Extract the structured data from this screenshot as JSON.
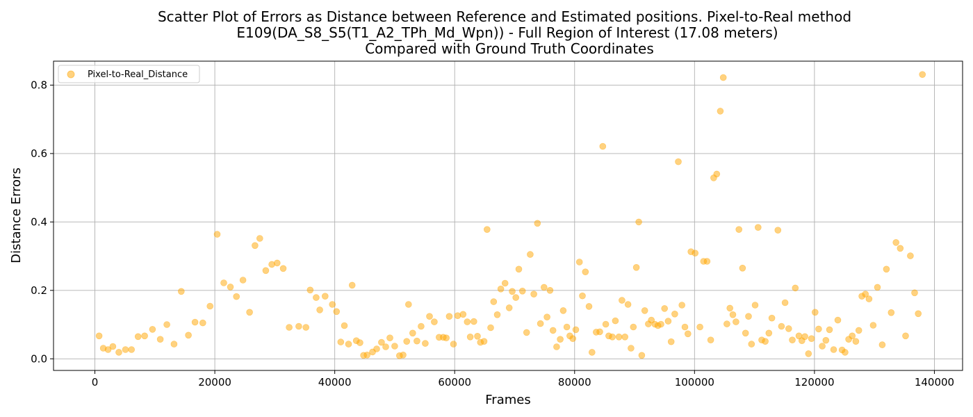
{
  "chart_data": {
    "type": "scatter",
    "title": [
      "Scatter Plot of Errors as Distance between Reference and Estimated positions. Pixel-to-Real method",
      "E109(DA_S8_S5(T1_A2_TPh_Md_Wpn)) - Full Region of Interest (17.08 meters)",
      "Compared with Ground Truth Coordinates"
    ],
    "xlabel": "Frames",
    "ylabel": "Distance Errors",
    "xlim": [
      -6900,
      144700
    ],
    "ylim": [
      -0.034,
      0.87
    ],
    "xticks": [
      0,
      20000,
      40000,
      60000,
      80000,
      100000,
      120000,
      140000
    ],
    "xtick_labels": [
      "0",
      "20000",
      "40000",
      "60000",
      "80000",
      "100000",
      "120000",
      "140000"
    ],
    "yticks": [
      0.0,
      0.2,
      0.4,
      0.6,
      0.8
    ],
    "ytick_labels": [
      "0.0",
      "0.2",
      "0.4",
      "0.6",
      "0.8"
    ],
    "grid": true,
    "legend_position": "top-left",
    "series": [
      {
        "name": "Pixel-to-Real_Distance",
        "color": "#ffa500",
        "alpha": 0.5,
        "points": [
          [
            700,
            0.067
          ],
          [
            1400,
            0.031
          ],
          [
            2200,
            0.027
          ],
          [
            3000,
            0.036
          ],
          [
            4000,
            0.019
          ],
          [
            5100,
            0.027
          ],
          [
            6100,
            0.027
          ],
          [
            7200,
            0.065
          ],
          [
            8300,
            0.067
          ],
          [
            9600,
            0.086
          ],
          [
            10900,
            0.057
          ],
          [
            12000,
            0.1
          ],
          [
            13200,
            0.043
          ],
          [
            14400,
            0.197
          ],
          [
            15600,
            0.069
          ],
          [
            16700,
            0.107
          ],
          [
            18000,
            0.105
          ],
          [
            19200,
            0.154
          ],
          [
            20400,
            0.364
          ],
          [
            21500,
            0.222
          ],
          [
            22600,
            0.21
          ],
          [
            23600,
            0.182
          ],
          [
            24700,
            0.23
          ],
          [
            25800,
            0.136
          ],
          [
            26700,
            0.331
          ],
          [
            27500,
            0.352
          ],
          [
            28500,
            0.258
          ],
          [
            29500,
            0.276
          ],
          [
            30400,
            0.28
          ],
          [
            31400,
            0.264
          ],
          [
            32400,
            0.092
          ],
          [
            34000,
            0.095
          ],
          [
            35200,
            0.092
          ],
          [
            35900,
            0.201
          ],
          [
            36900,
            0.179
          ],
          [
            37500,
            0.143
          ],
          [
            38400,
            0.183
          ],
          [
            39600,
            0.159
          ],
          [
            40300,
            0.138
          ],
          [
            41000,
            0.049
          ],
          [
            41600,
            0.097
          ],
          [
            42300,
            0.043
          ],
          [
            42900,
            0.215
          ],
          [
            43600,
            0.053
          ],
          [
            44200,
            0.047
          ],
          [
            44800,
            0.01
          ],
          [
            45400,
            0.011
          ],
          [
            46300,
            0.02
          ],
          [
            47000,
            0.029
          ],
          [
            47800,
            0.048
          ],
          [
            48500,
            0.035
          ],
          [
            49200,
            0.061
          ],
          [
            50000,
            0.037
          ],
          [
            50800,
            0.009
          ],
          [
            51400,
            0.011
          ],
          [
            52000,
            0.051
          ],
          [
            52300,
            0.159
          ],
          [
            53000,
            0.075
          ],
          [
            53700,
            0.052
          ],
          [
            54400,
            0.095
          ],
          [
            55100,
            0.045
          ],
          [
            55800,
            0.124
          ],
          [
            56600,
            0.108
          ],
          [
            57400,
            0.063
          ],
          [
            58100,
            0.063
          ],
          [
            58600,
            0.061
          ],
          [
            59100,
            0.124
          ],
          [
            59800,
            0.043
          ],
          [
            60500,
            0.126
          ],
          [
            61400,
            0.13
          ],
          [
            62100,
            0.108
          ],
          [
            62600,
            0.064
          ],
          [
            63200,
            0.109
          ],
          [
            63800,
            0.066
          ],
          [
            64300,
            0.048
          ],
          [
            64900,
            0.051
          ],
          [
            65400,
            0.378
          ],
          [
            66000,
            0.091
          ],
          [
            66500,
            0.167
          ],
          [
            67100,
            0.129
          ],
          [
            67700,
            0.204
          ],
          [
            68400,
            0.221
          ],
          [
            69100,
            0.149
          ],
          [
            69600,
            0.197
          ],
          [
            70200,
            0.179
          ],
          [
            70700,
            0.262
          ],
          [
            71300,
            0.198
          ],
          [
            72000,
            0.077
          ],
          [
            72600,
            0.305
          ],
          [
            73200,
            0.189
          ],
          [
            73800,
            0.396
          ],
          [
            74300,
            0.103
          ],
          [
            74900,
            0.209
          ],
          [
            75400,
            0.122
          ],
          [
            75900,
            0.2
          ],
          [
            76400,
            0.083
          ],
          [
            77000,
            0.035
          ],
          [
            77600,
            0.057
          ],
          [
            78100,
            0.141
          ],
          [
            78700,
            0.093
          ],
          [
            79200,
            0.067
          ],
          [
            79700,
            0.059
          ],
          [
            80200,
            0.085
          ],
          [
            80800,
            0.283
          ],
          [
            81300,
            0.184
          ],
          [
            81800,
            0.254
          ],
          [
            82400,
            0.153
          ],
          [
            82900,
            0.019
          ],
          [
            83600,
            0.078
          ],
          [
            84200,
            0.079
          ],
          [
            84700,
            0.621
          ],
          [
            85200,
            0.101
          ],
          [
            85700,
            0.067
          ],
          [
            86300,
            0.064
          ],
          [
            86800,
            0.111
          ],
          [
            87400,
            0.064
          ],
          [
            87900,
            0.171
          ],
          [
            88400,
            0.064
          ],
          [
            88900,
            0.159
          ],
          [
            89400,
            0.031
          ],
          [
            89800,
            0.093
          ],
          [
            90300,
            0.267
          ],
          [
            90700,
            0.4
          ],
          [
            91200,
            0.01
          ],
          [
            91700,
            0.141
          ],
          [
            92300,
            0.102
          ],
          [
            92800,
            0.113
          ],
          [
            93400,
            0.101
          ],
          [
            93900,
            0.097
          ],
          [
            94400,
            0.101
          ],
          [
            95000,
            0.147
          ],
          [
            95600,
            0.11
          ],
          [
            96100,
            0.05
          ],
          [
            96700,
            0.131
          ],
          [
            97300,
            0.576
          ],
          [
            97900,
            0.157
          ],
          [
            98400,
            0.093
          ],
          [
            98900,
            0.073
          ],
          [
            99400,
            0.313
          ],
          [
            100100,
            0.309
          ],
          [
            100900,
            0.093
          ],
          [
            101500,
            0.285
          ],
          [
            102100,
            0.285
          ],
          [
            102700,
            0.055
          ],
          [
            103200,
            0.529
          ],
          [
            103700,
            0.54
          ],
          [
            104300,
            0.724
          ],
          [
            104800,
            0.822
          ],
          [
            105400,
            0.102
          ],
          [
            105900,
            0.148
          ],
          [
            106400,
            0.129
          ],
          [
            106900,
            0.108
          ],
          [
            107400,
            0.378
          ],
          [
            108000,
            0.265
          ],
          [
            108500,
            0.075
          ],
          [
            109000,
            0.124
          ],
          [
            109500,
            0.043
          ],
          [
            110100,
            0.157
          ],
          [
            110600,
            0.384
          ],
          [
            111200,
            0.055
          ],
          [
            111800,
            0.051
          ],
          [
            112400,
            0.075
          ],
          [
            112900,
            0.119
          ],
          [
            113900,
            0.376
          ],
          [
            114500,
            0.095
          ],
          [
            115100,
            0.164
          ],
          [
            115700,
            0.088
          ],
          [
            116300,
            0.055
          ],
          [
            116800,
            0.207
          ],
          [
            117400,
            0.067
          ],
          [
            117900,
            0.053
          ],
          [
            118400,
            0.065
          ],
          [
            119000,
            0.015
          ],
          [
            119500,
            0.059
          ],
          [
            120100,
            0.136
          ],
          [
            120700,
            0.087
          ],
          [
            121300,
            0.037
          ],
          [
            121900,
            0.054
          ],
          [
            122500,
            0.085
          ],
          [
            123200,
            0.027
          ],
          [
            123900,
            0.113
          ],
          [
            124600,
            0.026
          ],
          [
            125100,
            0.019
          ],
          [
            125700,
            0.057
          ],
          [
            126300,
            0.067
          ],
          [
            126900,
            0.051
          ],
          [
            127400,
            0.083
          ],
          [
            127900,
            0.183
          ],
          [
            128500,
            0.189
          ],
          [
            129100,
            0.175
          ],
          [
            129800,
            0.098
          ],
          [
            130500,
            0.209
          ],
          [
            131300,
            0.041
          ],
          [
            132000,
            0.262
          ],
          [
            132800,
            0.135
          ],
          [
            133600,
            0.34
          ],
          [
            134300,
            0.323
          ],
          [
            135200,
            0.067
          ],
          [
            136000,
            0.301
          ],
          [
            136700,
            0.193
          ],
          [
            137300,
            0.132
          ],
          [
            138000,
            0.831
          ]
        ]
      }
    ]
  }
}
